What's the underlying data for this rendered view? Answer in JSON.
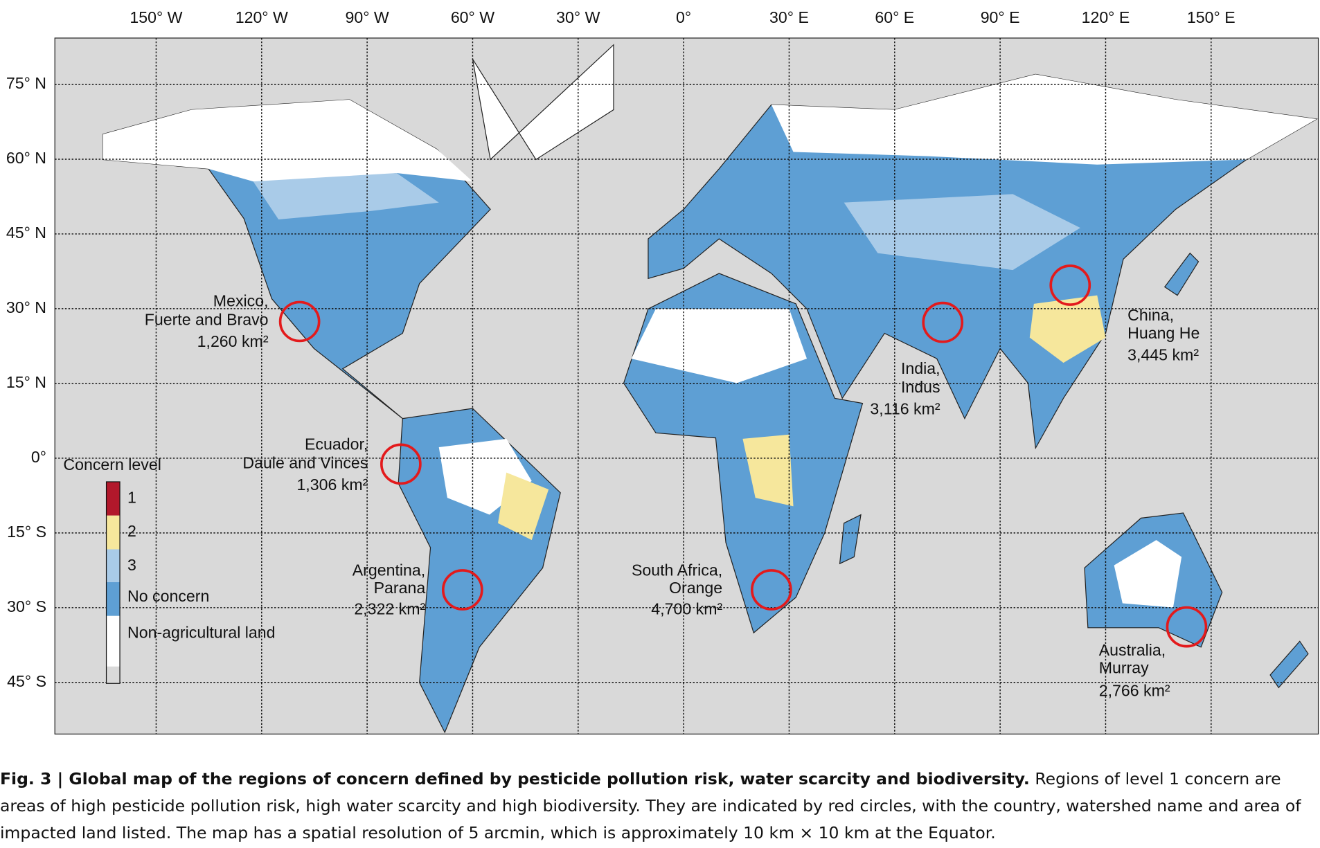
{
  "map": {
    "longitude_labels": [
      "150° W",
      "120° W",
      "90° W",
      "60° W",
      "30° W",
      "0°",
      "30° E",
      "60° E",
      "90° E",
      "120° E",
      "150° E"
    ],
    "latitude_labels": [
      "75° N",
      "60° N",
      "45° N",
      "30° N",
      "15° N",
      "0°",
      "15° S",
      "30° S",
      "45° S"
    ],
    "legend": {
      "title": "Concern level",
      "items": [
        {
          "label": "1",
          "color": "#b2182b"
        },
        {
          "label": "2",
          "color": "#f6e79c"
        },
        {
          "label": "3",
          "color": "#a9cbe8"
        },
        {
          "label": "No concern",
          "color": "#5e9fd4"
        },
        {
          "label": "Non-agricultural land",
          "color": "#ffffff"
        }
      ]
    },
    "annotations": [
      {
        "lines": [
          "Mexico,",
          "Fuerte and Bravo",
          "1,260 km²"
        ]
      },
      {
        "lines": [
          "Ecuador,",
          "Daule and Vinces",
          "1,306 km²"
        ]
      },
      {
        "lines": [
          "Argentina,",
          "Parana",
          "2,322 km²"
        ]
      },
      {
        "lines": [
          "South Africa,",
          "Orange",
          "4,700 km²"
        ]
      },
      {
        "lines": [
          "India,",
          "Indus",
          "3,116 km²"
        ]
      },
      {
        "lines": [
          "China,",
          "Huang He",
          "3,445 km²"
        ]
      },
      {
        "lines": [
          "Australia,",
          "Murray",
          "2,766 km²"
        ]
      }
    ]
  },
  "caption": {
    "title": "Fig. 3 | Global map of the regions of concern defined by pesticide pollution risk, water scarcity and biodiversity.",
    "text": "Regions of level 1 concern are areas of high pesticide pollution risk, high water scarcity and high biodiversity. They are indicated by red circles, with the country, watershed name and area of impacted land listed. The map has a spatial resolution of 5 arcmin, which is approximately 10 km × 10 km at the Equator."
  }
}
